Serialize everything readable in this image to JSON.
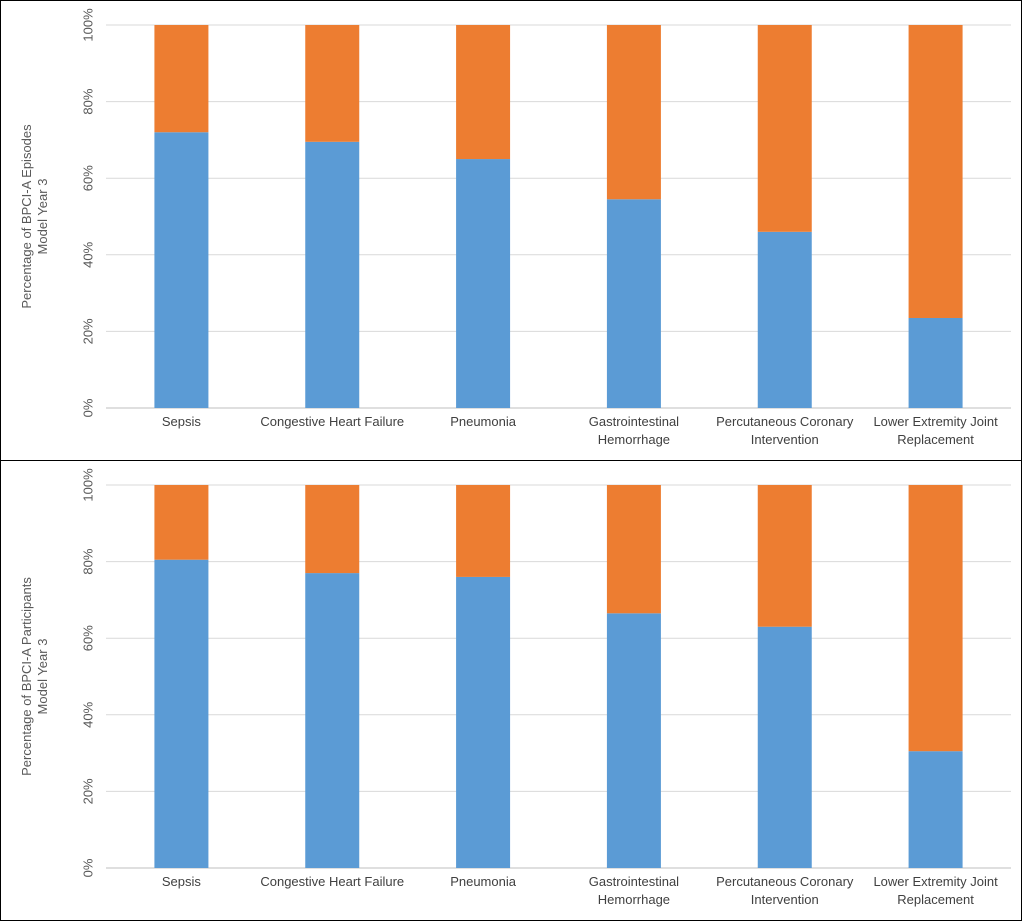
{
  "chart_data": [
    {
      "type": "bar",
      "stacked": true,
      "percent_stacked": true,
      "categories": [
        [
          "Sepsis"
        ],
        [
          "Congestive Heart Failure"
        ],
        [
          "Pneumonia"
        ],
        [
          "Gastrointestinal",
          "Hemorrhage"
        ],
        [
          "Percutaneous Coronary",
          "Intervention"
        ],
        [
          "Lower Extremity Joint",
          "Replacement"
        ]
      ],
      "series": [
        {
          "values": [
            72,
            69.5,
            65,
            54.5,
            46,
            23.5
          ],
          "color": "#5B9BD5"
        },
        {
          "values": [
            28,
            30.5,
            35,
            45.5,
            54,
            76.5
          ],
          "color": "#ED7D31"
        }
      ],
      "ylabel": [
        "Percentage of BPCI-A Episodes",
        "Model Year 3"
      ],
      "ylim": [
        0,
        100
      ],
      "yticks": [
        "0%",
        "20%",
        "40%",
        "60%",
        "80%",
        "100%"
      ],
      "grid": true,
      "legend": "none"
    },
    {
      "type": "bar",
      "stacked": true,
      "percent_stacked": true,
      "categories": [
        [
          "Sepsis"
        ],
        [
          "Congestive Heart Failure"
        ],
        [
          "Pneumonia"
        ],
        [
          "Gastrointestinal",
          "Hemorrhage"
        ],
        [
          "Percutaneous Coronary",
          "Intervention"
        ],
        [
          "Lower Extremity Joint",
          "Replacement"
        ]
      ],
      "series": [
        {
          "values": [
            80.5,
            77,
            76,
            66.5,
            63,
            30.5
          ],
          "color": "#5B9BD5"
        },
        {
          "values": [
            19.5,
            23,
            24,
            33.5,
            37,
            69.5
          ],
          "color": "#ED7D31"
        }
      ],
      "ylabel": [
        "Percentage of BPCI-A Participants",
        "Model Year 3"
      ],
      "ylim": [
        0,
        100
      ],
      "yticks": [
        "0%",
        "20%",
        "40%",
        "60%",
        "80%",
        "100%"
      ],
      "grid": true,
      "legend": "none"
    }
  ]
}
